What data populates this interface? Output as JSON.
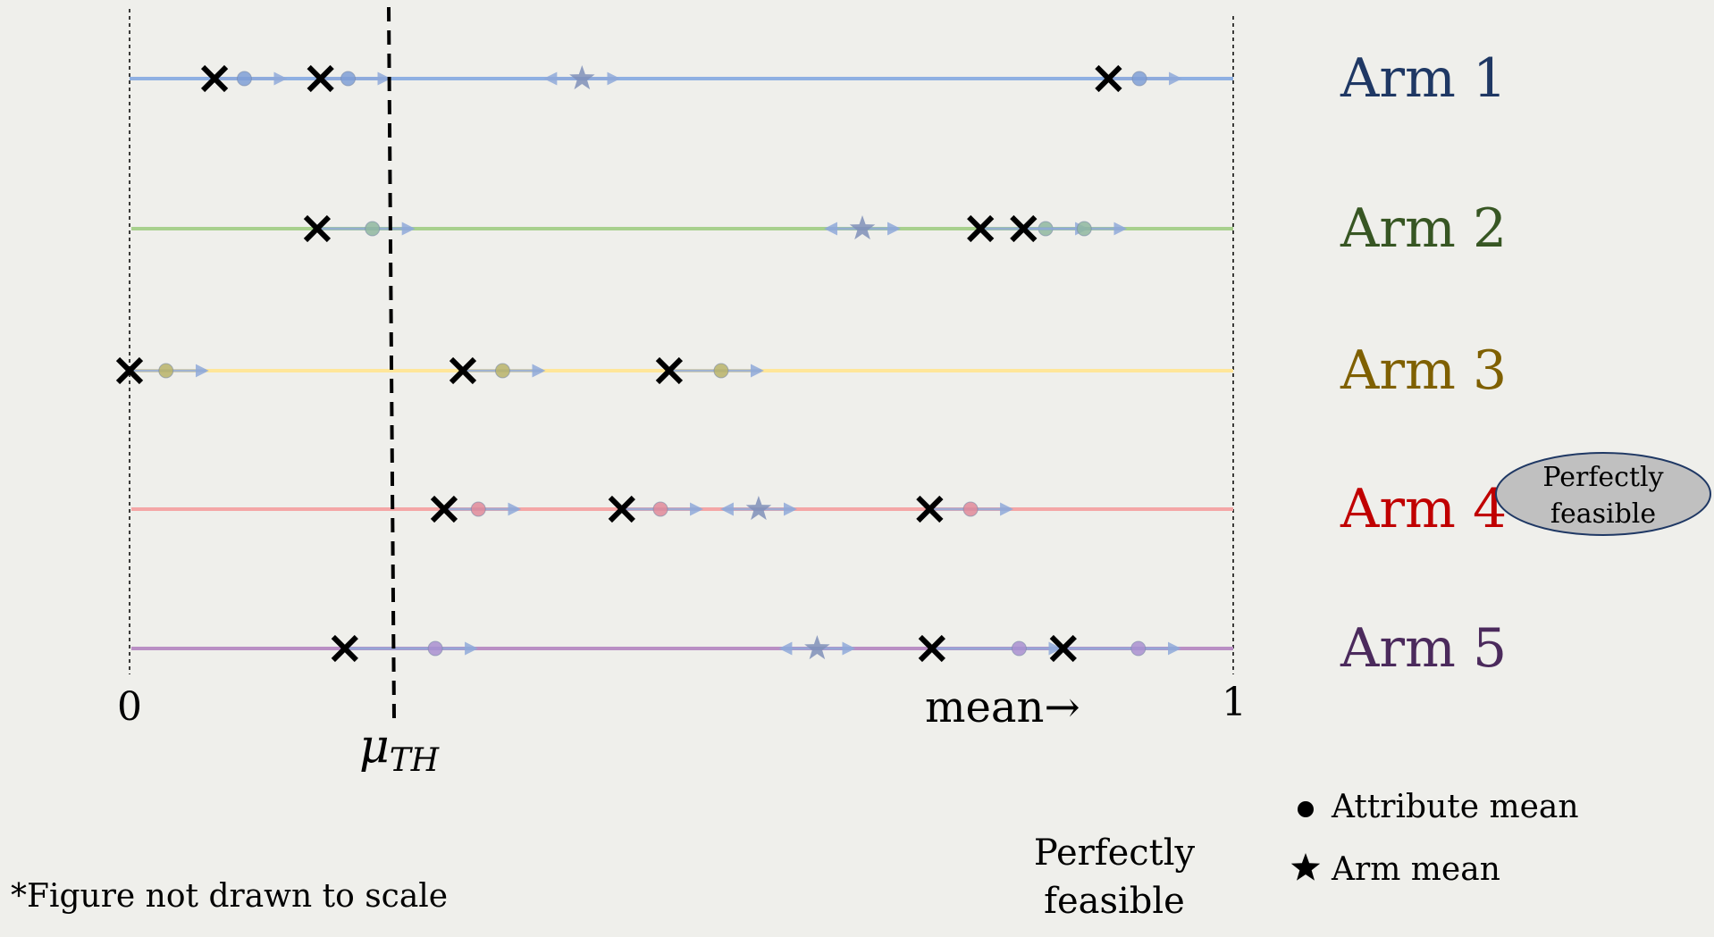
{
  "axis": {
    "zero_label": "0",
    "one_label": "1",
    "direction_label": "mean→",
    "threshold_label": "μ",
    "threshold_subscript": "TH",
    "threshold_value": 0.24
  },
  "arms": [
    {
      "name": "Arm 1",
      "line_color": "#8fb0e2",
      "label_color": "#1f3864",
      "dot_color": "#7f9fd6",
      "arm_mean": 0.41,
      "attributes": [
        {
          "x": 0.077,
          "mean": 0.104
        },
        {
          "x": 0.173,
          "mean": 0.198
        },
        {
          "x": 0.887,
          "mean": 0.915
        }
      ]
    },
    {
      "name": "Arm 2",
      "line_color": "#a8d08d",
      "label_color": "#375623",
      "dot_color": "#8fb7a0",
      "arm_mean": 0.664,
      "attributes": [
        {
          "x": 0.17,
          "mean": 0.22
        },
        {
          "x": 0.771,
          "mean": 0.83
        },
        {
          "x": 0.81,
          "mean": 0.865
        }
      ]
    },
    {
      "name": "Arm 3",
      "line_color": "#ffe699",
      "label_color": "#7f6000",
      "dot_color": "#b8b36a",
      "arm_mean": null,
      "attributes": [
        {
          "x": 0.0,
          "mean": 0.033
        },
        {
          "x": 0.302,
          "mean": 0.338
        },
        {
          "x": 0.489,
          "mean": 0.536
        }
      ]
    },
    {
      "name": "Arm 4",
      "line_color": "#f4a6a6",
      "label_color": "#c00000",
      "dot_color": "#e08a9a",
      "arm_mean": 0.57,
      "attributes": [
        {
          "x": 0.285,
          "mean": 0.316
        },
        {
          "x": 0.446,
          "mean": 0.481
        },
        {
          "x": 0.725,
          "mean": 0.762
        }
      ],
      "badge": "Perfectly feasible"
    },
    {
      "name": "Arm 5",
      "line_color": "#b98fc4",
      "label_color": "#4b2a5c",
      "dot_color": "#a98fd0",
      "arm_mean": 0.623,
      "attributes": [
        {
          "x": 0.195,
          "mean": 0.277
        },
        {
          "x": 0.727,
          "mean": 0.806
        },
        {
          "x": 0.846,
          "mean": 0.914
        }
      ]
    }
  ],
  "legend": {
    "attribute_mean": "Attribute mean",
    "arm_mean": "Arm mean"
  },
  "perfectly_feasible_caption_line1": "Perfectly",
  "perfectly_feasible_caption_line2": "feasible",
  "footnote": "*Figure not drawn to scale",
  "badge_line1": "Perfectly",
  "badge_line2": "feasible"
}
